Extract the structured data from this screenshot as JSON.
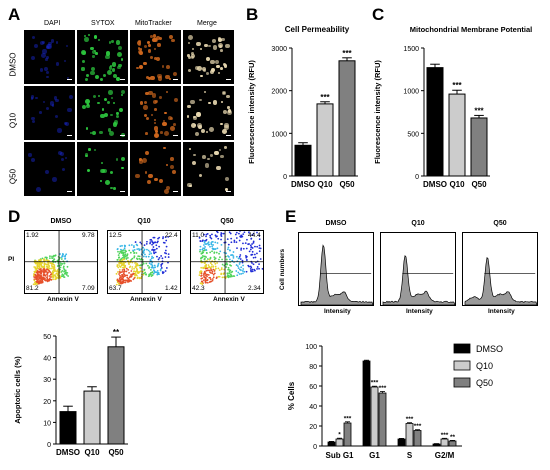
{
  "panels": {
    "a": {
      "letter": "A",
      "columns": [
        "DAPI",
        "SYTOX",
        "MitoTracker",
        "Merge"
      ],
      "rows": [
        "DMSO",
        "Q10",
        "Q50"
      ],
      "colors": {
        "DAPI": "#1a2bd6",
        "SYTOX": "#2ecc40",
        "MitoTracker": "#d2691e",
        "Merge": "#e8d8b0"
      }
    },
    "b": {
      "letter": "B"
    },
    "c": {
      "letter": "C"
    },
    "d": {
      "letter": "D",
      "flow_titles": [
        "DMSO",
        "Q10",
        "Q50"
      ],
      "y_axis": "PI",
      "x_axis": "Annexin V",
      "quadrants": [
        {
          "ul": "1.92",
          "ur": "9.78",
          "ll": "81.2",
          "lr": "7.09"
        },
        {
          "ul": "12.5",
          "ur": "22.4",
          "ll": "63.7",
          "lr": "1.42"
        },
        {
          "ul": "11.0",
          "ur": "44.4",
          "ll": "42.3",
          "lr": "2.34"
        }
      ]
    },
    "e": {
      "letter": "E",
      "hist_titles": [
        "DMSO",
        "Q10",
        "Q50"
      ],
      "y_axis": "Cell numbers",
      "x_axis": "Intensity"
    }
  },
  "chart_data": [
    {
      "type": "bar",
      "panel": "B",
      "title": "Cell Permeability",
      "ylabel": "Fluorescence intensity (RFU)",
      "xlabel": "",
      "categories": [
        "DMSO",
        "Q10",
        "Q50"
      ],
      "values": [
        720,
        1690,
        2700
      ],
      "errors": [
        60,
        50,
        70
      ],
      "significance": [
        "",
        "***",
        "***"
      ],
      "ylim": [
        0,
        3000
      ],
      "yticks": [
        0,
        1000,
        2000,
        3000
      ],
      "colors": [
        "#000000",
        "#cccccc",
        "#808080"
      ]
    },
    {
      "type": "bar",
      "panel": "C",
      "title": "Mitochondrial Membrane Potential",
      "ylabel": "Fluorescence intensity (RFU)",
      "xlabel": "",
      "categories": [
        "DMSO",
        "Q10",
        "Q50"
      ],
      "values": [
        1270,
        960,
        680
      ],
      "errors": [
        40,
        45,
        30
      ],
      "significance": [
        "",
        "***",
        "***"
      ],
      "ylim": [
        0,
        1500
      ],
      "yticks": [
        0,
        500,
        1000,
        1500
      ],
      "colors": [
        "#000000",
        "#cccccc",
        "#808080"
      ]
    },
    {
      "type": "bar",
      "panel": "D",
      "title": "",
      "ylabel": "Apoptotic cells (%)",
      "xlabel": "",
      "categories": [
        "DMSO",
        "Q10",
        "Q50"
      ],
      "values": [
        15,
        24.5,
        45
      ],
      "errors": [
        2.5,
        2.0,
        4.5
      ],
      "significance": [
        "",
        "",
        "**"
      ],
      "ylim": [
        0,
        50
      ],
      "yticks": [
        0,
        10,
        20,
        30,
        40,
        50
      ],
      "colors": [
        "#000000",
        "#cccccc",
        "#808080"
      ]
    },
    {
      "type": "bar",
      "panel": "E",
      "title": "",
      "ylabel": "% Cells",
      "xlabel": "",
      "categories": [
        "Sub G1",
        "G1",
        "S",
        "G2/M"
      ],
      "series": [
        {
          "name": "DMSO",
          "values": [
            4,
            85,
            7,
            2
          ],
          "errors": [
            0.6,
            0.8,
            0.6,
            0.4
          ],
          "significance": [
            "",
            "",
            "",
            ""
          ]
        },
        {
          "name": "Q10",
          "values": [
            7,
            59,
            22.5,
            7
          ],
          "errors": [
            0.8,
            0.8,
            0.8,
            0.7
          ],
          "significance": [
            "*",
            "***",
            "***",
            "***"
          ]
        },
        {
          "name": "Q50",
          "values": [
            23,
            53,
            15.5,
            5
          ],
          "errors": [
            1.2,
            1.5,
            0.8,
            0.6
          ],
          "significance": [
            "***",
            "***",
            "***",
            "**"
          ]
        }
      ],
      "ylim": [
        0,
        100
      ],
      "yticks": [
        0,
        20,
        40,
        60,
        80,
        100
      ],
      "legend": "top-right",
      "colors": [
        "#000000",
        "#cccccc",
        "#808080"
      ]
    }
  ]
}
